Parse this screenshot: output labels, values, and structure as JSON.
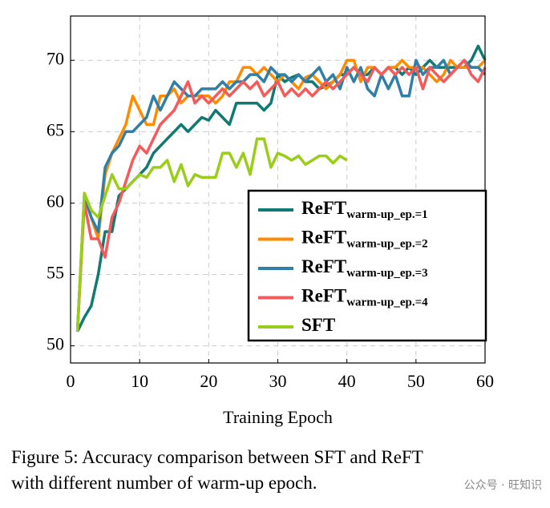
{
  "chart_data": {
    "type": "line",
    "x": [
      1,
      2,
      3,
      4,
      5,
      6,
      7,
      8,
      9,
      10,
      11,
      12,
      13,
      14,
      15,
      16,
      17,
      18,
      19,
      20,
      21,
      22,
      23,
      24,
      25,
      26,
      27,
      28,
      29,
      30,
      31,
      32,
      33,
      34,
      35,
      36,
      37,
      38,
      39,
      40,
      41,
      42,
      43,
      44,
      45,
      46,
      47,
      48,
      49,
      50,
      51,
      52,
      53,
      54,
      55,
      56,
      57,
      58,
      59,
      60
    ],
    "series": [
      {
        "name": "ReFT",
        "subscript": "warm-up_ep.=1",
        "color": "#0f7a72",
        "values": [
          51,
          52,
          52.8,
          55,
          58,
          58,
          60.5,
          61,
          61.5,
          62,
          62.5,
          63.5,
          64,
          64.5,
          65,
          65.5,
          65,
          65.5,
          66,
          65.8,
          66.5,
          66,
          65.5,
          67,
          67,
          67,
          67,
          66.5,
          67,
          69,
          68.5,
          68.8,
          69,
          68.5,
          68.5,
          68,
          68.2,
          68.5,
          69,
          69,
          69.5,
          69,
          69,
          69.5,
          69,
          69.5,
          69.5,
          69,
          69.5,
          69,
          69.5,
          70,
          69.5,
          69.5,
          69.5,
          69.5,
          69.5,
          70,
          71,
          70
        ]
      },
      {
        "name": "ReFT",
        "subscript": "warm-up_ep.=2",
        "color": "#ff8c00",
        "values": [
          51,
          60.5,
          59,
          57.5,
          62,
          63.5,
          64.5,
          65.5,
          67.5,
          66.5,
          65.5,
          65.5,
          67.5,
          67.5,
          68,
          67,
          67.5,
          67.5,
          67.5,
          67.5,
          67,
          67.5,
          68.5,
          68.5,
          69.5,
          69.5,
          69,
          69.5,
          69,
          68.5,
          69,
          68.5,
          68,
          68.8,
          69,
          68.5,
          68,
          68.5,
          69,
          70,
          70,
          68.5,
          69.5,
          69.5,
          69,
          69.5,
          69.5,
          70,
          69.5,
          69.5,
          69.5,
          69,
          68.5,
          69,
          70,
          69.5,
          69.5,
          69.5,
          69.5,
          70
        ]
      },
      {
        "name": "ReFT",
        "subscript": "warm-up_ep.=3",
        "color": "#2f7fa8",
        "values": [
          51,
          60.5,
          59,
          58,
          62.5,
          63.5,
          64,
          65,
          65,
          65.5,
          66,
          67.5,
          66.5,
          67.5,
          68.5,
          68,
          67.5,
          67.5,
          68,
          68,
          68,
          68.5,
          68,
          68.5,
          68.5,
          69,
          69,
          68.5,
          69.5,
          69,
          69,
          68.5,
          69,
          68.5,
          69,
          69.5,
          68.5,
          69,
          68,
          69.5,
          68.5,
          69.5,
          68,
          67.5,
          69,
          68,
          69,
          67.5,
          67.5,
          70,
          69,
          69.5,
          69.5,
          70,
          69,
          69.5,
          70,
          69.5,
          69.5,
          69
        ]
      },
      {
        "name": "ReFT",
        "subscript": "warm-up_ep.=4",
        "color": "#f45a5a",
        "values": [
          51,
          60,
          57.5,
          57.5,
          56.2,
          59,
          60,
          61.5,
          63,
          64,
          63.5,
          64.5,
          65.5,
          66,
          66.5,
          67.5,
          68.5,
          67,
          67.5,
          67,
          67.5,
          68,
          67.5,
          68,
          68.5,
          68,
          68.5,
          67.5,
          68,
          68.5,
          67.5,
          68,
          67.5,
          68,
          67.5,
          68,
          68.5,
          68,
          68.5,
          69,
          69.5,
          69,
          68.5,
          69.5,
          69,
          69.5,
          69,
          69.5,
          69,
          69.5,
          68,
          69.5,
          69,
          68.5,
          69,
          69.5,
          70,
          69,
          68.5,
          69.5
        ]
      },
      {
        "name": "SFT",
        "color": "#9acd1a",
        "values": [
          51,
          60.7,
          59.5,
          59,
          60.5,
          62,
          61,
          61,
          61.5,
          62,
          61.8,
          62.5,
          62.5,
          63,
          61.5,
          62.7,
          61.2,
          62,
          61.8,
          61.8,
          61.8,
          63.5,
          63.5,
          62.5,
          63.5,
          62,
          64.5,
          64.5,
          62.5,
          63.5,
          63.3,
          63,
          63.3,
          62.7,
          63,
          63.3,
          63.3,
          62.8,
          63.3,
          63,
          null,
          null,
          null,
          null,
          null,
          null,
          null,
          null,
          null,
          null,
          null,
          null,
          null,
          null,
          null,
          null,
          null,
          null,
          null,
          null
        ]
      }
    ],
    "xlabel": "Training Epoch",
    "xlim": [
      0,
      60
    ],
    "xticks": [
      0,
      10,
      20,
      30,
      40,
      50,
      60
    ],
    "ylim": [
      48.8,
      73.1
    ],
    "yticks": [
      50,
      55,
      60,
      65,
      70
    ],
    "grid": true,
    "legend": "lower right",
    "caption": [
      "Figure 5: Accuracy comparison between SFT and ReFT",
      "with different number of warm-up epoch."
    ],
    "watermark": "公众号 · 旺知识"
  }
}
